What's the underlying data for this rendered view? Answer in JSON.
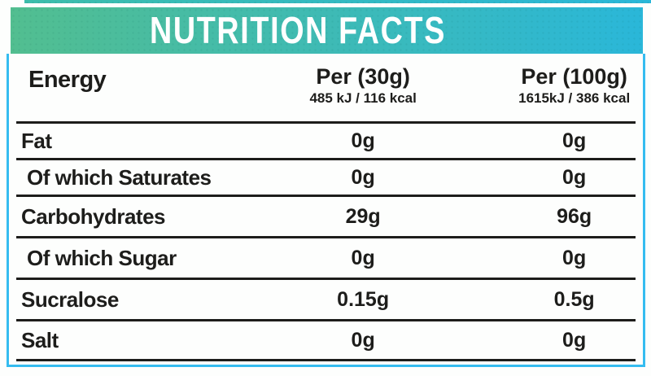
{
  "header": {
    "title": "NUTRITION FACTS"
  },
  "table": {
    "header_row": {
      "label": "Energy",
      "per30_title": "Per (30g)",
      "per30_energy": "485 kJ / 116 kcal",
      "per100_title": "Per (100g)",
      "per100_energy": "1615kJ / 386 kcal"
    },
    "rows": [
      {
        "label": "Fat",
        "per30": "0g",
        "per100": "0g"
      },
      {
        "label": "Of which Saturates",
        "per30": "0g",
        "per100": "0g"
      },
      {
        "label": "Carbohydrates",
        "per30": "29g",
        "per100": "96g"
      },
      {
        "label": "Of which Sugar",
        "per30": "0g",
        "per100": "0g"
      },
      {
        "label": "Sucralose",
        "per30": "0.15g",
        "per100": "0.5g"
      },
      {
        "label": "Salt",
        "per30": "0g",
        "per100": "0g"
      }
    ]
  },
  "colors": {
    "gradient_start": "#52BE90",
    "gradient_end": "#2AB7D9",
    "border": "#35BCF0",
    "line": "#1D1D1B",
    "text": "#1D1D1B"
  }
}
